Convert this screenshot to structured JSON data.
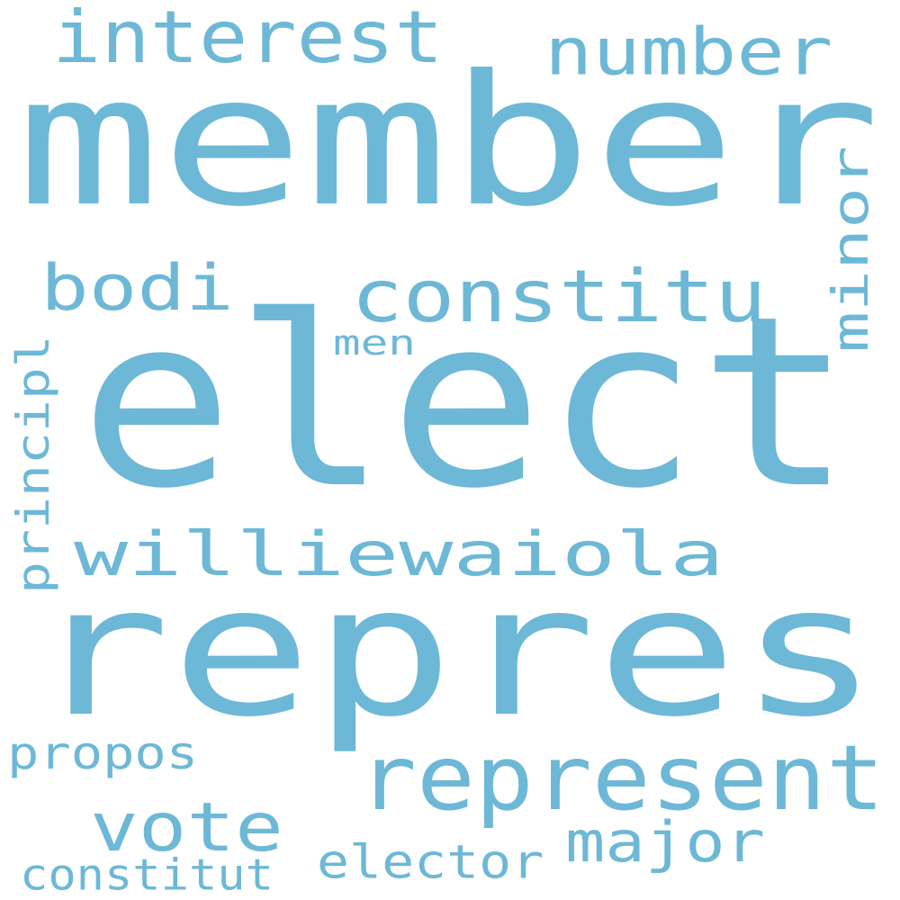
{
  "color": "#6db8d6",
  "words": [
    {
      "text": "elect"
    },
    {
      "text": "repres"
    },
    {
      "text": "member"
    },
    {
      "text": "represent"
    },
    {
      "text": "williewaiola"
    },
    {
      "text": "constitu"
    },
    {
      "text": "interest"
    },
    {
      "text": "number"
    },
    {
      "text": "bodi"
    },
    {
      "text": "vote"
    },
    {
      "text": "major"
    },
    {
      "text": "minor"
    },
    {
      "text": "principl"
    },
    {
      "text": "propos"
    },
    {
      "text": "elector"
    },
    {
      "text": "constitut"
    },
    {
      "text": "men"
    }
  ]
}
